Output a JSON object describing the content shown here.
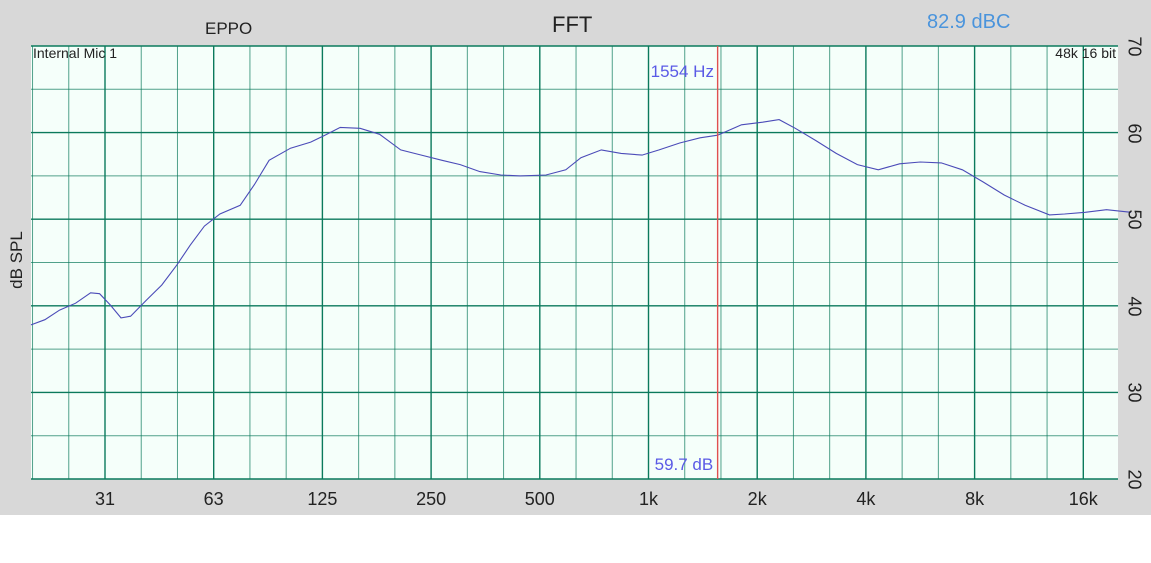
{
  "header": {
    "left_label": "EPPO",
    "title": "FFT",
    "level_readout": "82.9 dBC"
  },
  "plot": {
    "input_label": "Internal Mic 1",
    "format_label": "48k 16 bit"
  },
  "cursor": {
    "frequency_label": "1554 Hz",
    "level_label": "59.7 dB",
    "frequency_hz": 1554,
    "level_db": 59.7
  },
  "colors": {
    "grid": "#0b7a5c",
    "trace": "#4b4bb8",
    "cursor": "#e05050",
    "cursor_text": "#5a5ae6",
    "readout": "#4a94dc",
    "plot_bg": "#f5fffa",
    "frame": "#d8d8d8"
  },
  "chart_data": {
    "type": "line",
    "title": "FFT",
    "xlabel": "",
    "ylabel": "dB SPL",
    "x_scale": "log",
    "xlim": [
      19.5,
      22000
    ],
    "ylim": [
      20,
      70
    ],
    "grid": true,
    "x_ticks": [
      {
        "label": "31",
        "value": 31.25
      },
      {
        "label": "63",
        "value": 62.5
      },
      {
        "label": "125",
        "value": 125
      },
      {
        "label": "250",
        "value": 250
      },
      {
        "label": "500",
        "value": 500
      },
      {
        "label": "1k",
        "value": 1000
      },
      {
        "label": "2k",
        "value": 2000
      },
      {
        "label": "4k",
        "value": 4000
      },
      {
        "label": "8k",
        "value": 8000
      },
      {
        "label": "16k",
        "value": 16000
      }
    ],
    "y_ticks": [
      "70",
      "60",
      "50",
      "40",
      "30",
      "20"
    ],
    "series": [
      {
        "x": [
          19.5,
          21.3,
          23.4,
          25.9,
          28.5,
          30.2,
          32.3,
          34.6,
          36.8,
          40.8,
          44.9,
          49.4,
          53.8,
          58.9,
          65,
          74,
          81,
          89,
          102,
          116,
          127,
          140,
          159,
          180,
          206,
          235,
          268,
          301,
          341,
          390,
          441,
          520,
          590,
          650,
          740,
          840,
          960,
          1070,
          1220,
          1390,
          1554,
          1810,
          2070,
          2300,
          2550,
          2900,
          3310,
          3790,
          4330,
          4960,
          5660,
          6470,
          7400,
          8450,
          9660,
          11040,
          12900,
          14200,
          16200,
          18550,
          21700
        ],
        "y": [
          37.8,
          38.4,
          39.5,
          40.3,
          41.5,
          41.4,
          40.1,
          38.6,
          38.8,
          40.7,
          42.4,
          44.7,
          47.0,
          49.2,
          50.6,
          51.6,
          54.0,
          56.8,
          58.2,
          58.9,
          59.7,
          60.6,
          60.5,
          59.8,
          58.0,
          57.4,
          56.8,
          56.3,
          55.5,
          55.1,
          55.0,
          55.1,
          55.7,
          57.1,
          58.0,
          57.6,
          57.4,
          58.0,
          58.8,
          59.4,
          59.7,
          60.9,
          61.2,
          61.5,
          60.5,
          59.1,
          57.6,
          56.3,
          55.7,
          56.4,
          56.6,
          56.5,
          55.7,
          54.3,
          52.8,
          51.6,
          50.5,
          50.6,
          50.8,
          51.1,
          50.8
        ]
      }
    ]
  }
}
